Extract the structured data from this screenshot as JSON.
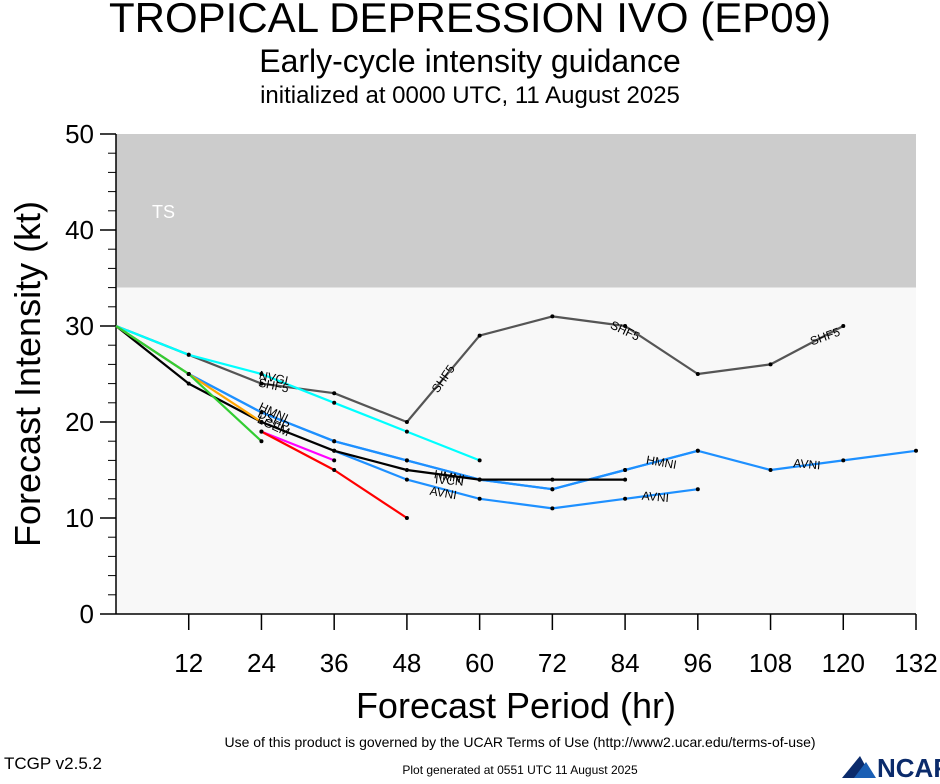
{
  "header": {
    "title": "TROPICAL DEPRESSION IVO (EP09)",
    "subtitle": "Early-cycle intensity guidance",
    "init": "initialized at 0000 UTC, 11 August 2025"
  },
  "footer": {
    "terms": "Use of this product is governed by the UCAR Terms of Use (http://www2.ucar.edu/terms-of-use)",
    "version": "TCGP v2.5.2",
    "generated": "Plot generated at 0551 UTC   11 August 2025",
    "logo_text": "NCAR"
  },
  "chart_data": {
    "type": "line",
    "xlabel": "Forecast Period (hr)",
    "ylabel": "Forecast Intensity (kt)",
    "xlim": [
      0,
      132
    ],
    "ylim": [
      0,
      50
    ],
    "xticks": [
      12,
      24,
      36,
      48,
      60,
      72,
      84,
      96,
      108,
      120,
      132
    ],
    "yticks": [
      0,
      10,
      20,
      30,
      40,
      50
    ],
    "bands": [
      {
        "label": "TS",
        "from": 34,
        "to": 50,
        "color": "#cccccc"
      },
      {
        "label": "",
        "from": 0,
        "to": 34,
        "color": "#f8f8f8"
      }
    ],
    "series": [
      {
        "name": "SHF5",
        "color": "#555555",
        "label_at": [
          24,
          48,
          84,
          120
        ],
        "x": [
          0,
          12,
          24,
          36,
          48,
          60,
          72,
          84,
          96,
          108,
          120
        ],
        "y": [
          30,
          27,
          24,
          23,
          20,
          29,
          31,
          30,
          25,
          26,
          30
        ]
      },
      {
        "name": "",
        "color": "#00ffff",
        "label_at": [],
        "x": [
          0,
          12,
          24,
          36,
          48,
          60
        ],
        "y": [
          30,
          27,
          25,
          22,
          19,
          16
        ]
      },
      {
        "name": "AVNI",
        "color": "#1e90ff",
        "label_at": [
          48,
          84,
          114
        ],
        "x": [
          0,
          12,
          24,
          36,
          48,
          60,
          72,
          84,
          96,
          108,
          120,
          132
        ],
        "y": [
          30,
          25,
          21,
          18,
          16,
          14,
          13,
          15,
          17,
          15,
          16,
          17
        ]
      },
      {
        "name": "AVNI",
        "color": "#1e90ff",
        "label_at": [],
        "label_names": [],
        "x": [
          36,
          48,
          60,
          72,
          84,
          96
        ],
        "y": [
          17,
          14,
          12,
          11,
          12,
          13
        ]
      },
      {
        "name": "HMNI",
        "color": "#1e90ff",
        "label_at": [
          24,
          90
        ],
        "x": [
          0,
          12,
          24,
          36,
          48,
          60,
          72,
          84,
          96
        ],
        "y": [
          30,
          25,
          21,
          18,
          16,
          14,
          13,
          15,
          17
        ]
      },
      {
        "name": "IVCN",
        "color": "#000000",
        "label_at": [],
        "x": [
          0,
          12,
          24,
          36,
          48,
          60,
          72,
          84
        ],
        "y": [
          30,
          24,
          20,
          17,
          15,
          14,
          14,
          14
        ]
      },
      {
        "name": "",
        "color": "#ffa500",
        "label_at": [],
        "x": [
          0,
          12,
          24
        ],
        "y": [
          30,
          25,
          20
        ]
      },
      {
        "name": "",
        "color": "#32cd32",
        "label_at": [],
        "x": [
          0,
          12,
          24
        ],
        "y": [
          30,
          25,
          18
        ]
      },
      {
        "name": "",
        "color": "#ff00ff",
        "label_at": [],
        "x": [
          24,
          36
        ],
        "y": [
          19,
          16
        ]
      },
      {
        "name": "",
        "color": "#ff0000",
        "label_at": [],
        "x": [
          24,
          36,
          48
        ],
        "y": [
          19,
          15,
          10
        ]
      }
    ],
    "inline_labels": [
      {
        "text": "NVGI",
        "x": 26,
        "y": 24.6,
        "angle": 12
      },
      {
        "text": "SHF5",
        "x": 26,
        "y": 23.8,
        "angle": 12
      },
      {
        "text": "SHF5",
        "x": 54,
        "y": 24.5,
        "angle": -55
      },
      {
        "text": "SHF5",
        "x": 84,
        "y": 29.5,
        "angle": 25
      },
      {
        "text": "SHF5",
        "x": 117,
        "y": 28.9,
        "angle": -20
      },
      {
        "text": "HMNI",
        "x": 26,
        "y": 21,
        "angle": 25
      },
      {
        "text": "DSHP",
        "x": 26,
        "y": 20.2,
        "angle": 25
      },
      {
        "text": "LGEM",
        "x": 26,
        "y": 19.6,
        "angle": 25
      },
      {
        "text": "HMNI",
        "x": 55,
        "y": 14.3,
        "angle": 10
      },
      {
        "text": "IVCN",
        "x": 55,
        "y": 13.9,
        "angle": 5
      },
      {
        "text": "AVNI",
        "x": 54,
        "y": 12.6,
        "angle": 10
      },
      {
        "text": "HMNI",
        "x": 90,
        "y": 15.8,
        "angle": 10
      },
      {
        "text": "AVNI",
        "x": 89,
        "y": 12.2,
        "angle": 5
      },
      {
        "text": "AVNI",
        "x": 114,
        "y": 15.6,
        "angle": 5
      }
    ]
  }
}
